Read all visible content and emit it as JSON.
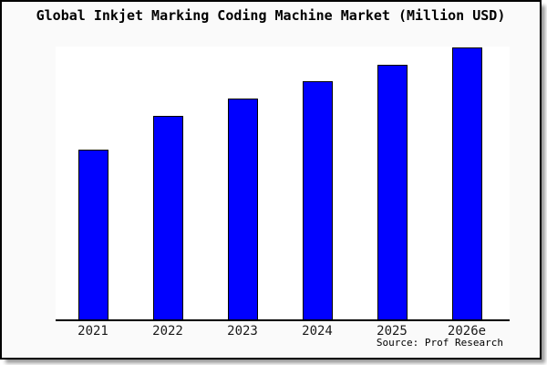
{
  "window": {
    "background": "#fafafa",
    "plot_background": "#ffffff",
    "frame_border_color": "#000000",
    "shadow_color": "#9a9a9a"
  },
  "chart_data": {
    "type": "bar",
    "title": "Global Inkjet Marking Coding Machine Market (Million USD)",
    "xlabel": "",
    "ylabel": "",
    "categories": [
      "2021",
      "2022",
      "2023",
      "2024",
      "2025",
      "2026e"
    ],
    "values": [
      62.2,
      74.6,
      80.9,
      87.3,
      93.3,
      99.7
    ],
    "ylim": [
      0,
      100
    ],
    "y_axis_visible": false,
    "gridlines": false,
    "legend": null,
    "bar_color": "#0000ff",
    "bar_border_color": "#000000",
    "axis_line_color": "#000000",
    "tick_label_color": "#1a1a1a"
  },
  "source": {
    "text": "Source: Prof Research"
  }
}
